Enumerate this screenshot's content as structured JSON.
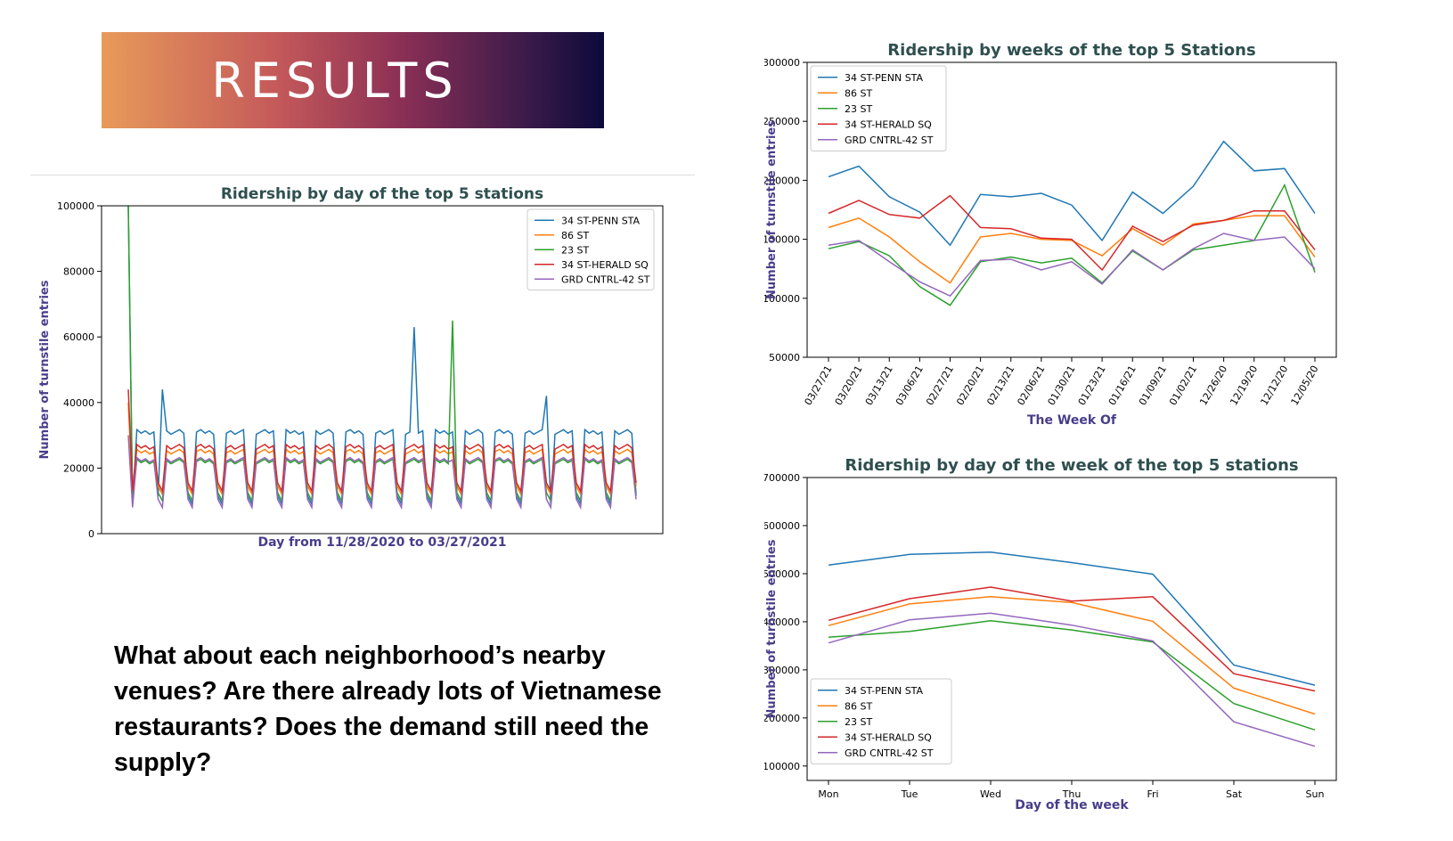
{
  "banner": {
    "title": "RESULTS"
  },
  "question": {
    "text": "What about each neighborhood’s nearby venues? Are there already lots of Vietnamese restaurants? Does the demand still need the supply?"
  },
  "colors": {
    "34 ST-PENN STA": "#1f77b4",
    "86 ST": "#ff7f0e",
    "23 ST": "#2ca02c",
    "34 ST-HERALD SQ": "#d62728",
    "GRD CNTRL-42 ST": "#9467bd"
  },
  "chart_data": [
    {
      "id": "daily",
      "type": "line",
      "title": "Ridership by day of the top 5 stations",
      "xlabel": "Day from 11/28/2020 to 03/27/2021",
      "ylabel": "Number of turnstile entries",
      "ylim": [
        0,
        100000
      ],
      "yticks": [
        0,
        20000,
        40000,
        60000,
        80000,
        100000
      ],
      "n_points": 120,
      "legend": "top-right",
      "series": [
        {
          "name": "34 ST-PENN STA",
          "base": 31000,
          "low": 9000,
          "first": 100000,
          "spikes": [
            [
              8,
              44000
            ],
            [
              67,
              63000
            ],
            [
              98,
              42000
            ]
          ]
        },
        {
          "name": "86 ST",
          "base": 25000,
          "low": 12000,
          "first": 40000,
          "spikes": []
        },
        {
          "name": "23 ST",
          "base": 22000,
          "low": 10000,
          "first": 100000,
          "spikes": [
            [
              76,
              65000
            ]
          ]
        },
        {
          "name": "34 ST-HERALD SQ",
          "base": 26500,
          "low": 13000,
          "first": 44000,
          "spikes": []
        },
        {
          "name": "GRD CNTRL-42 ST",
          "base": 22500,
          "low": 8000,
          "first": 30000,
          "spikes": []
        }
      ]
    },
    {
      "id": "weekly",
      "type": "line",
      "title": "Ridership by weeks of the top 5 Stations",
      "xlabel": "The Week Of",
      "ylabel": "Number of turnstile entries",
      "ylim": [
        50000,
        300000
      ],
      "yticks": [
        50000,
        100000,
        150000,
        200000,
        250000,
        300000
      ],
      "categories": [
        "03/27/21",
        "03/20/21",
        "03/13/21",
        "03/06/21",
        "02/27/21",
        "02/20/21",
        "02/13/21",
        "02/06/21",
        "01/30/21",
        "01/23/21",
        "01/16/21",
        "01/09/21",
        "01/02/21",
        "12/26/20",
        "12/19/20",
        "12/12/20",
        "12/05/20"
      ],
      "legend": "top-left",
      "series": [
        {
          "name": "34 ST-PENN STA",
          "values": [
            203000,
            212000,
            186000,
            173000,
            145000,
            188000,
            186000,
            189000,
            179000,
            149000,
            190000,
            172000,
            195000,
            233000,
            208000,
            210000,
            172000
          ]
        },
        {
          "name": "86 ST",
          "values": [
            160000,
            168000,
            152000,
            131000,
            113000,
            152000,
            155000,
            150000,
            149000,
            136000,
            159000,
            145000,
            163000,
            166000,
            170000,
            170000,
            135000
          ]
        },
        {
          "name": "23 ST",
          "values": [
            142000,
            148000,
            136000,
            110000,
            94000,
            131000,
            135000,
            130000,
            134000,
            113000,
            140000,
            124000,
            141000,
            145000,
            149000,
            196000,
            122000
          ]
        },
        {
          "name": "34 ST-HERALD SQ",
          "values": [
            172000,
            183000,
            171000,
            168000,
            187000,
            160000,
            159000,
            151000,
            150000,
            124000,
            161000,
            148000,
            162000,
            166000,
            174000,
            174000,
            141000
          ]
        },
        {
          "name": "GRD CNTRL-42 ST",
          "values": [
            145000,
            149000,
            131000,
            114000,
            102000,
            132000,
            133000,
            124000,
            131000,
            112000,
            141000,
            124000,
            142000,
            155000,
            149000,
            152000,
            125000
          ]
        }
      ]
    },
    {
      "id": "dow",
      "type": "line",
      "title": "Ridership by day of the week of the top 5 stations",
      "xlabel": "Day of the week",
      "ylabel": "Number of turnstile entries",
      "ylim": [
        70000,
        700000
      ],
      "yticks": [
        100000,
        200000,
        300000,
        400000,
        500000,
        600000,
        700000
      ],
      "categories": [
        "Mon",
        "Tue",
        "Wed",
        "Thu",
        "Fri",
        "Sat",
        "Sun"
      ],
      "legend": "bottom-left",
      "series": [
        {
          "name": "34 ST-PENN STA",
          "values": [
            518000,
            540000,
            545000,
            523000,
            499000,
            310000,
            268000
          ]
        },
        {
          "name": "86 ST",
          "values": [
            392000,
            437000,
            452000,
            440000,
            401000,
            262000,
            208000
          ]
        },
        {
          "name": "23 ST",
          "values": [
            368000,
            380000,
            402000,
            383000,
            358000,
            230000,
            175000
          ]
        },
        {
          "name": "34 ST-HERALD SQ",
          "values": [
            403000,
            448000,
            472000,
            443000,
            452000,
            292000,
            256000
          ]
        },
        {
          "name": "GRD CNTRL-42 ST",
          "values": [
            356000,
            404000,
            418000,
            393000,
            360000,
            192000,
            141000
          ]
        }
      ]
    }
  ]
}
